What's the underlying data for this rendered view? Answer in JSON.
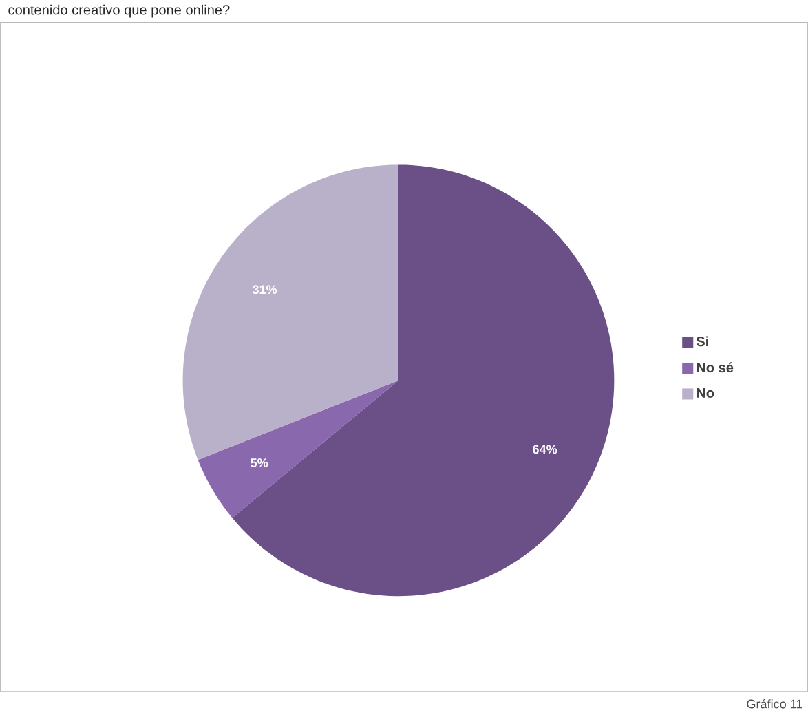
{
  "chart_data": {
    "type": "pie",
    "title": "contenido creativo que pone online?",
    "categories": [
      "Si",
      "No sé",
      "No"
    ],
    "values": [
      64,
      5,
      31
    ],
    "value_labels": [
      "64%",
      "5%",
      "31%"
    ],
    "colors": [
      "#6a5087",
      "#8a68ad",
      "#b9b0ca"
    ],
    "legend": "right",
    "annotations": [
      "Gráfico 11"
    ]
  }
}
